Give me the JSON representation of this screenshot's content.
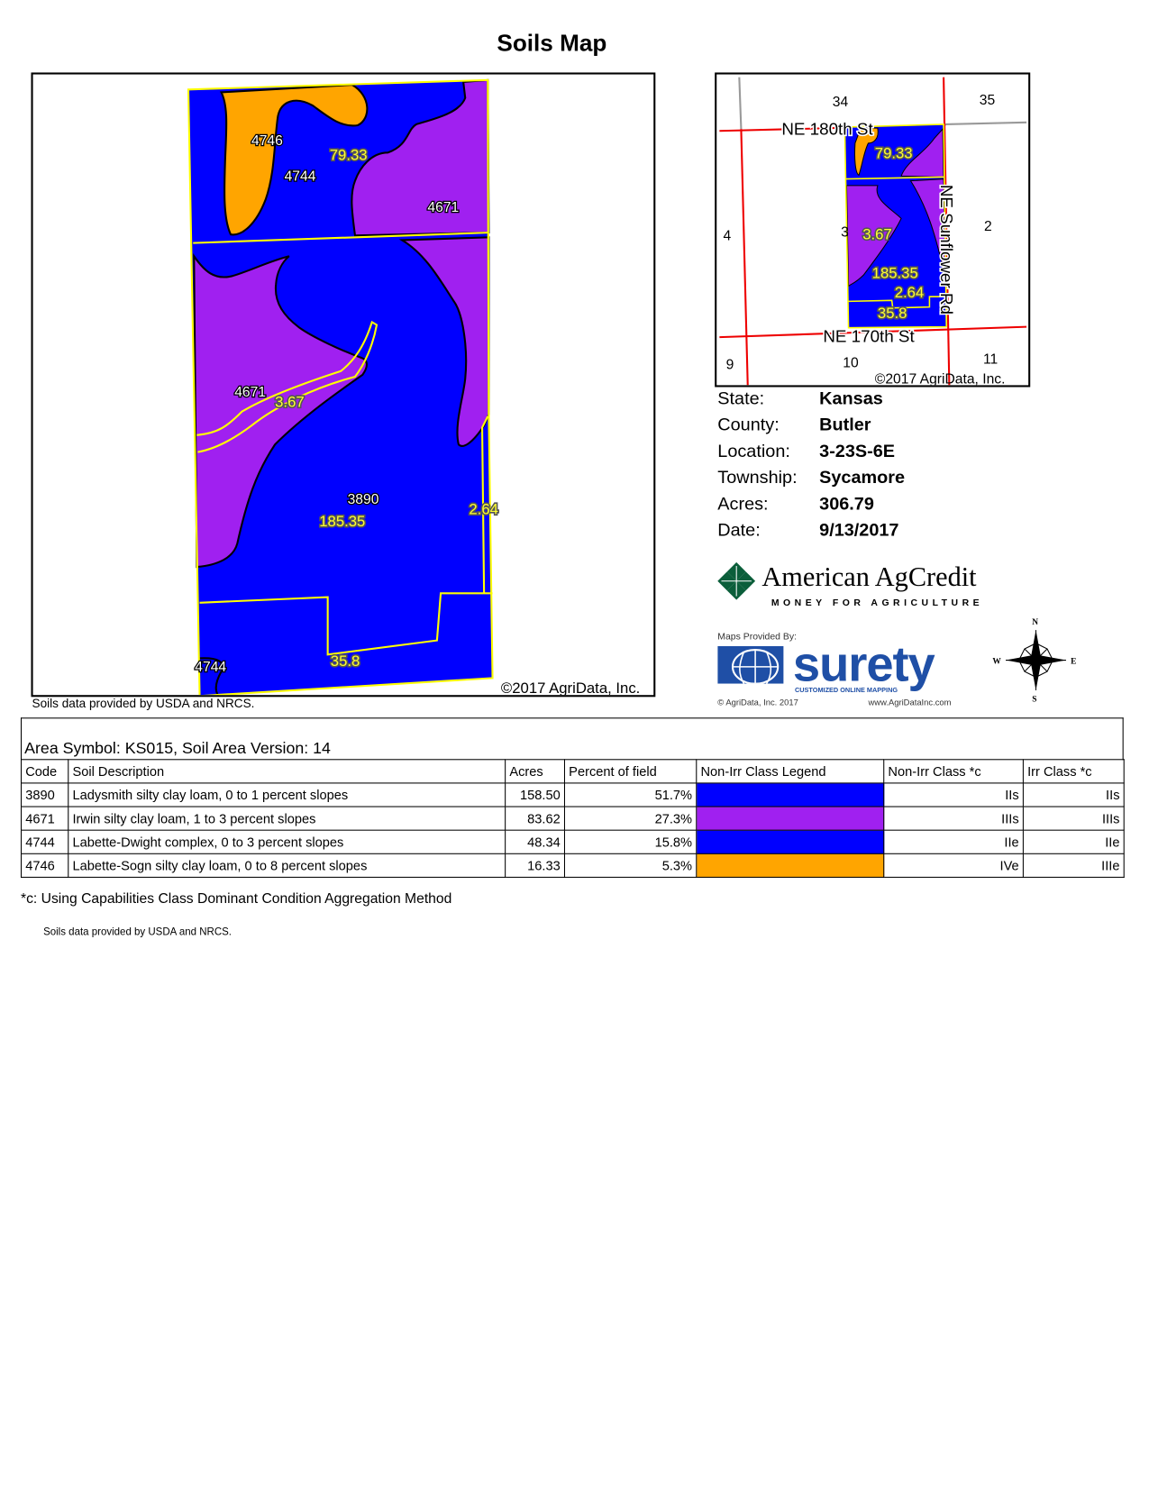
{
  "title": "Soils Map",
  "main_map": {
    "copyright": "©2017 AgriData, Inc.",
    "source_note": "Soils data provided by USDA and NRCS.",
    "soil_labels": [
      "4746",
      "4744",
      "4671",
      "4671",
      "3890",
      "4744"
    ],
    "acre_labels": [
      "79.33",
      "3.67",
      "185.35",
      "2.64",
      "35.8"
    ],
    "colors": {
      "3890": "#0000ff",
      "4671": "#a020f0",
      "4744": "#0000ff",
      "4746": "#ffa500",
      "boundary": "#ffff00"
    }
  },
  "locator_map": {
    "sections": [
      "34",
      "35",
      "4",
      "3",
      "2",
      "9",
      "10",
      "11"
    ],
    "roads": [
      "NE 180th St",
      "NE 170th St",
      "NE Sunflower Rd"
    ],
    "acre_labels": [
      "79.33",
      "3.67",
      "185.35",
      "2.64",
      "35.8"
    ],
    "copyright": "©2017 AgriData, Inc."
  },
  "info": [
    {
      "label": "State:",
      "value": "Kansas"
    },
    {
      "label": "County:",
      "value": "Butler"
    },
    {
      "label": "Location:",
      "value": "3-23S-6E"
    },
    {
      "label": "Township:",
      "value": "Sycamore"
    },
    {
      "label": "Acres:",
      "value": "306.79"
    },
    {
      "label": "Date:",
      "value": "9/13/2017"
    }
  ],
  "logos": {
    "agcredit_name": "American AgCredit",
    "agcredit_tagline": "MONEY FOR AGRICULTURE",
    "maps_provided_by": "Maps Provided By:",
    "surety": "surety",
    "surety_tagline": "CUSTOMIZED ONLINE MAPPING",
    "agridata_copyright": "© AgriData, Inc. 2017",
    "agridata_url": "www.AgriDataInc.com"
  },
  "compass": {
    "n": "N",
    "s": "S",
    "e": "E",
    "w": "W"
  },
  "table": {
    "area_symbol": "Area Symbol: KS015, Soil Area Version: 14",
    "headers": [
      "Code",
      "Soil Description",
      "Acres",
      "Percent of field",
      "Non-Irr Class Legend",
      "Non-Irr Class *c",
      "Irr Class *c"
    ],
    "rows": [
      {
        "code": "3890",
        "description": "Ladysmith silty clay loam, 0 to 1 percent slopes",
        "acres": "158.50",
        "percent": "51.7%",
        "color": "#0000ff",
        "nonirr": "IIs",
        "irr": "IIs"
      },
      {
        "code": "4671",
        "description": "Irwin silty clay loam, 1 to 3 percent slopes",
        "acres": "83.62",
        "percent": "27.3%",
        "color": "#a020f0",
        "nonirr": "IIIs",
        "irr": "IIIs"
      },
      {
        "code": "4744",
        "description": "Labette-Dwight complex, 0 to 3 percent slopes",
        "acres": "48.34",
        "percent": "15.8%",
        "color": "#0000ff",
        "nonirr": "IIe",
        "irr": "IIe"
      },
      {
        "code": "4746",
        "description": "Labette-Sogn silty clay loam, 0 to 8 percent slopes",
        "acres": "16.33",
        "percent": "5.3%",
        "color": "#ffa500",
        "nonirr": "IVe",
        "irr": "IIIe"
      }
    ],
    "footnote": "*c:  Using Capabilities Class Dominant Condition Aggregation Method",
    "source_note": "Soils data provided by USDA and NRCS."
  }
}
